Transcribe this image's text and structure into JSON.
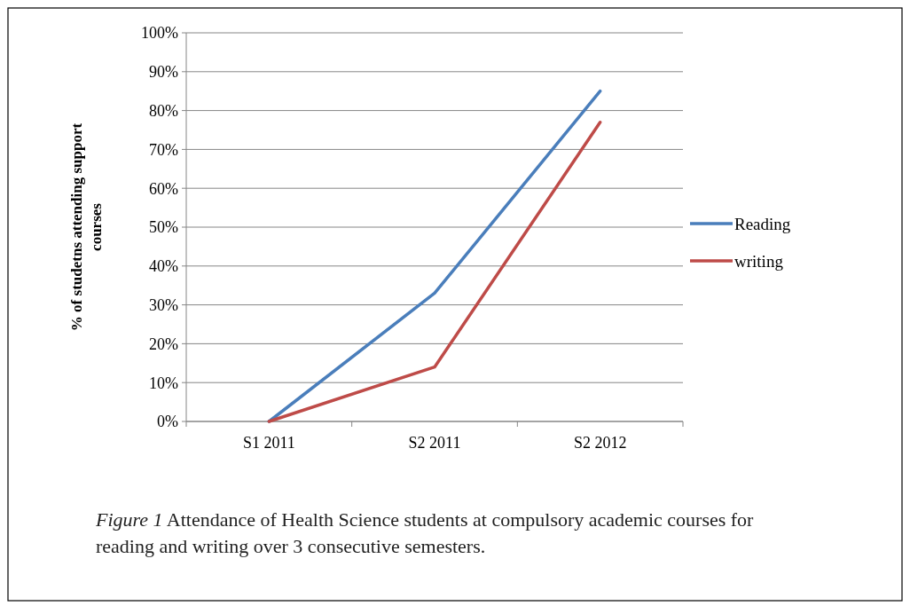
{
  "chart_data": {
    "type": "line",
    "ylabel": "% of studetns attending support courses",
    "categories": [
      "S1 2011",
      "S2 2011",
      "S2 2012"
    ],
    "series": [
      {
        "name": "Reading",
        "color": "#4a7ebb",
        "values": [
          0,
          33,
          85
        ]
      },
      {
        "name": "writing",
        "color": "#be4b48",
        "values": [
          0,
          14,
          77
        ]
      }
    ],
    "ylim": [
      0,
      100
    ],
    "yticks": [
      {
        "value": 0,
        "label": "0%"
      },
      {
        "value": 10,
        "label": "10%"
      },
      {
        "value": 20,
        "label": "20%"
      },
      {
        "value": 30,
        "label": "30%"
      },
      {
        "value": 40,
        "label": "40%"
      },
      {
        "value": 50,
        "label": "50%"
      },
      {
        "value": 60,
        "label": "60%"
      },
      {
        "value": 70,
        "label": "70%"
      },
      {
        "value": 80,
        "label": "80%"
      },
      {
        "value": 90,
        "label": "90%"
      },
      {
        "value": 100,
        "label": "100%"
      }
    ],
    "grid": "y",
    "legend": "right",
    "marker": "none",
    "line_style": "solid",
    "annotations": [
      "Figure 1",
      "Attendance of Health Science students at compulsory academic courses for reading and writing over 3 consecutive semesters."
    ]
  }
}
